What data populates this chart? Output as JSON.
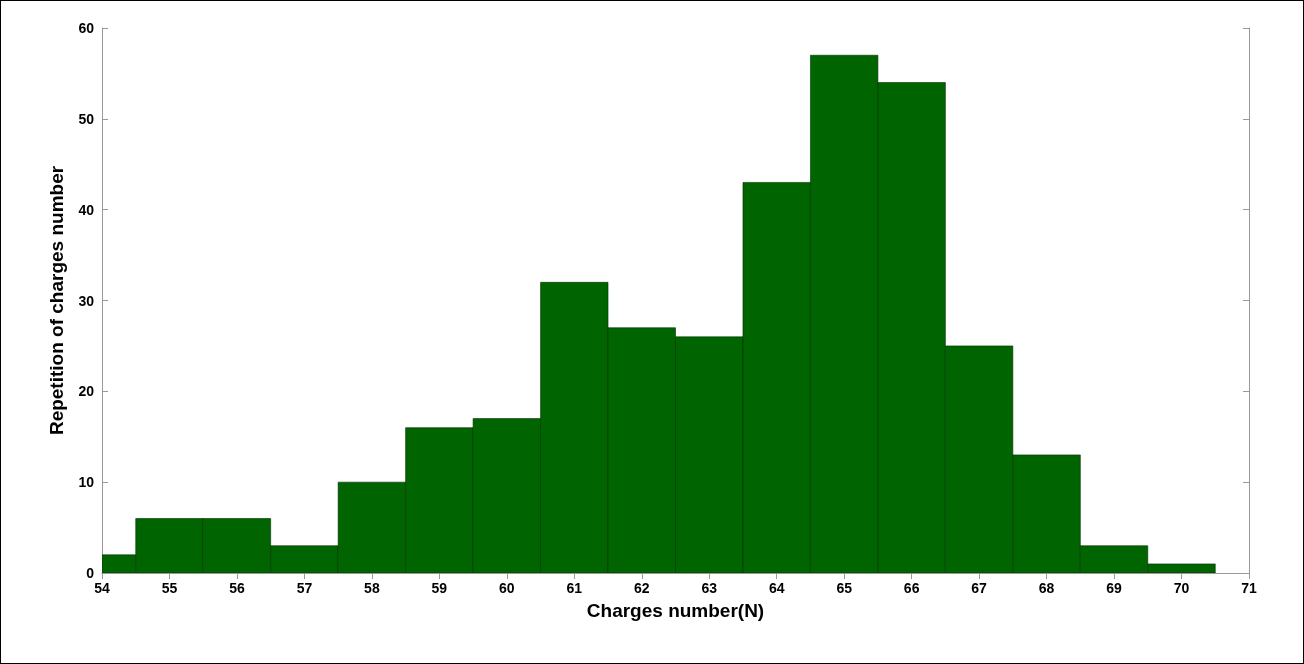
{
  "chart_data": {
    "type": "histogram",
    "xlabel": "Charges number(N)",
    "ylabel": "Repetition of charges number",
    "bins": [
      54,
      54.5,
      55.5,
      56.5,
      57.5,
      58.5,
      59.5,
      60.5,
      61.5,
      62.5,
      63.5,
      64.5,
      65.5,
      66.5,
      67.5,
      68.5,
      69.5,
      70.5
    ],
    "values": [
      2,
      6,
      6,
      3,
      10,
      16,
      17,
      32,
      27,
      26,
      43,
      57,
      54,
      25,
      13,
      3,
      1
    ],
    "color": "#006400",
    "xlim": [
      54,
      71
    ],
    "xticks": [
      54,
      55,
      56,
      57,
      58,
      59,
      60,
      61,
      62,
      63,
      64,
      65,
      66,
      67,
      68,
      69,
      70,
      71
    ],
    "ylim": [
      0,
      60
    ],
    "yticks": [
      0,
      10,
      20,
      30,
      40,
      50,
      60
    ],
    "grid": false
  }
}
